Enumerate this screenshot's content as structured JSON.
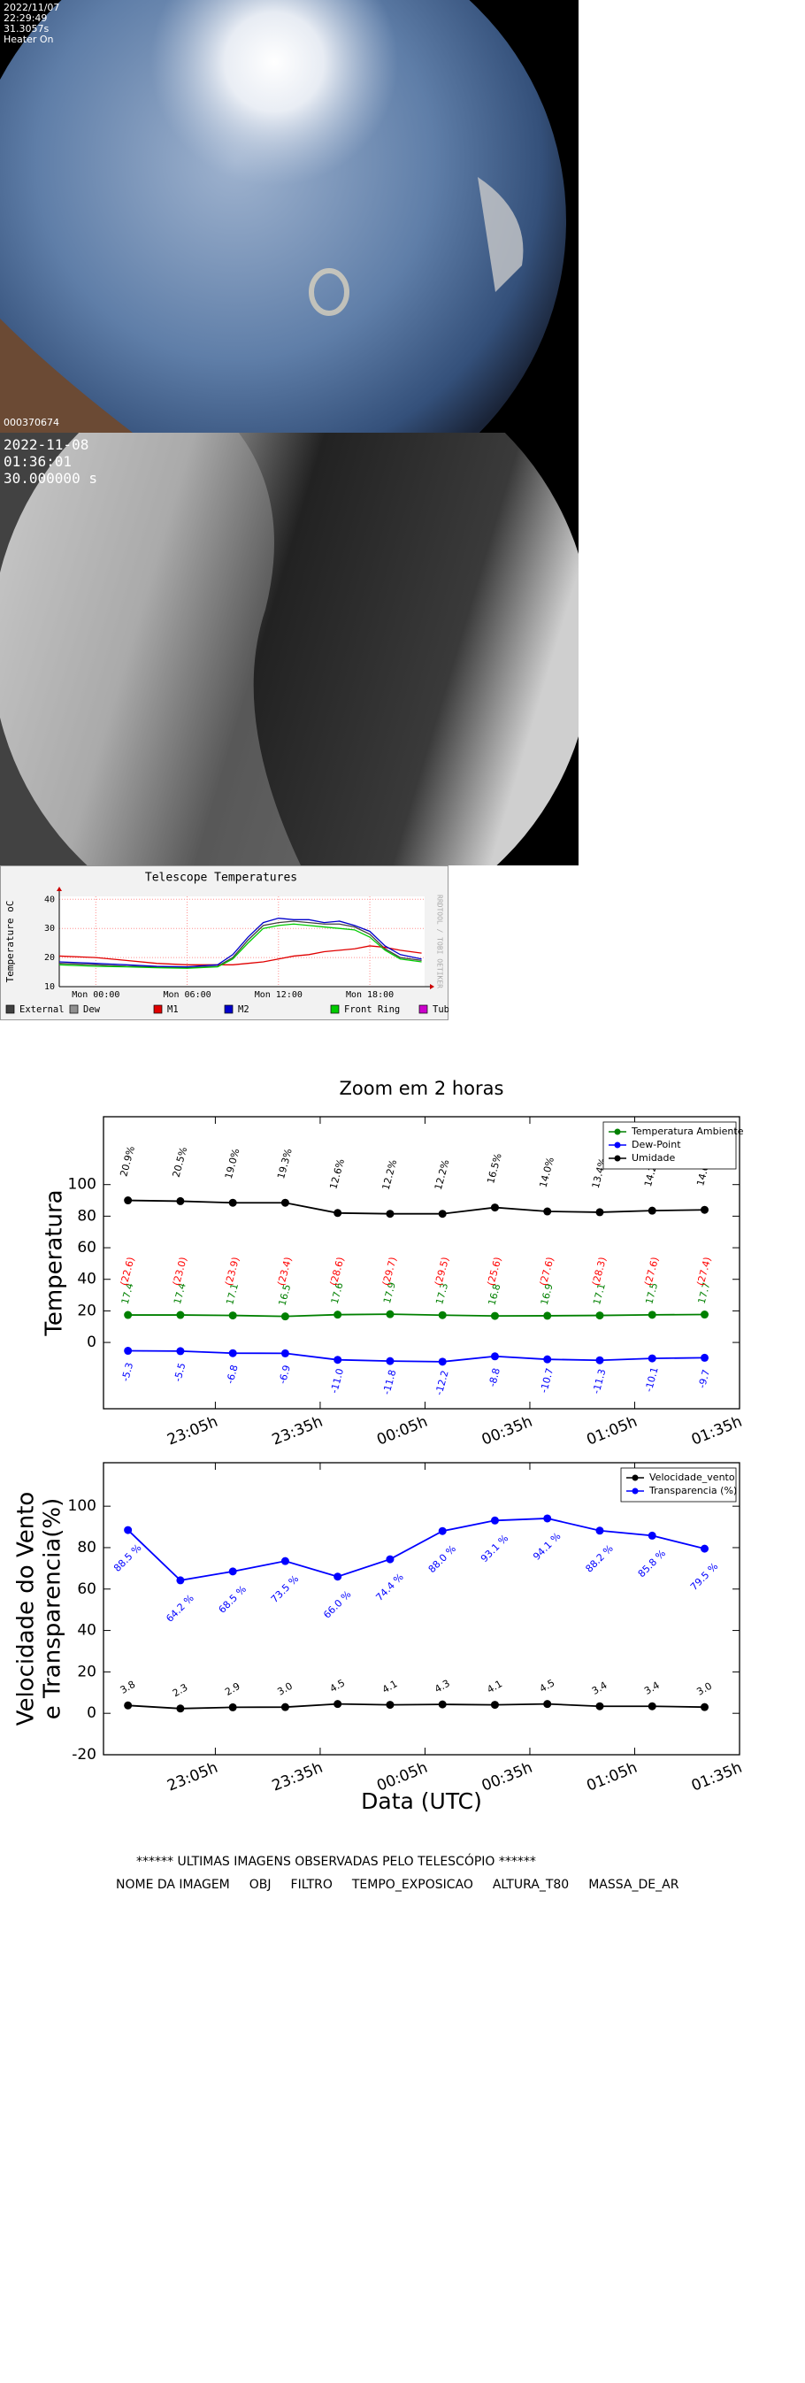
{
  "sky_image_1": {
    "lines": [
      "2022/11/07",
      "22:29:49",
      "31.3057s",
      "Heater On"
    ],
    "frame_id": "000370674"
  },
  "sky_image_2": {
    "lines": [
      "2022-11-08",
      "01:36:01",
      "30.000000 s"
    ]
  },
  "chart_data": [
    {
      "type": "line",
      "title": "Telescope Temperatures",
      "ylabel": "Temperature oC",
      "watermark": "RRDTOOL / TOBI OETIKER",
      "x": [
        -2.4,
        0,
        2,
        4,
        6,
        8,
        9,
        10,
        11,
        12,
        13,
        14,
        15,
        16,
        17,
        18,
        19,
        20,
        21.4
      ],
      "xlim": [
        -2.4,
        21.6
      ],
      "xticks": [
        {
          "value": 0,
          "label": "Mon 00:00"
        },
        {
          "value": 6,
          "label": "Mon 06:00"
        },
        {
          "value": 12,
          "label": "Mon 12:00"
        },
        {
          "value": 18,
          "label": "Mon 18:00"
        }
      ],
      "ylim": [
        10,
        41
      ],
      "yticks": [
        10,
        20,
        30,
        40
      ],
      "grid": true,
      "series": [
        {
          "name": "External",
          "color": "#404040",
          "values": [
            18,
            17.5,
            17,
            16.8,
            16.5,
            17,
            20,
            26,
            31,
            32,
            32.5,
            32,
            31.5,
            31.5,
            30.5,
            28,
            23,
            20,
            19
          ]
        },
        {
          "name": "Dew",
          "color": "#909090",
          "values": [
            null,
            null,
            null,
            null,
            null,
            null,
            null,
            null,
            null,
            null,
            null,
            null,
            null,
            null,
            null,
            null,
            null,
            null,
            null
          ]
        },
        {
          "name": "M1",
          "color": "#e00000",
          "values": [
            20.5,
            20,
            19,
            18,
            17.5,
            17.5,
            17.5,
            18,
            18.5,
            19.5,
            20.5,
            21,
            22,
            22.5,
            23,
            24,
            23.5,
            22.5,
            21.5
          ]
        },
        {
          "name": "M2",
          "color": "#0000cc",
          "values": [
            18.5,
            18,
            17.5,
            17,
            16.8,
            17.5,
            21,
            27,
            32,
            33.5,
            33,
            33,
            32,
            32.5,
            31,
            29,
            24,
            21,
            19.5
          ]
        },
        {
          "name": "Front Ring",
          "color": "#00cc00",
          "values": [
            17.5,
            17,
            16.8,
            16.5,
            16.3,
            16.8,
            19.5,
            25,
            30,
            31,
            31.5,
            31,
            30.5,
            30,
            29.5,
            27,
            22.5,
            19.5,
            18.5
          ]
        },
        {
          "name": "Tube Rod",
          "color": "#cc00cc",
          "values": [
            null,
            null,
            null,
            null,
            null,
            null,
            null,
            null,
            null,
            null,
            null,
            null,
            null,
            null,
            null,
            null,
            null,
            null,
            null
          ]
        }
      ]
    },
    {
      "type": "line",
      "title": "Zoom em 2 horas",
      "ylabel": [
        "Temperatura"
      ],
      "x": [
        -80,
        -65,
        -50,
        -35,
        -20,
        -5,
        10,
        25,
        40,
        55,
        70,
        85
      ],
      "xlim": [
        -87,
        95
      ],
      "xticks": [
        {
          "value": -55,
          "label": "23:05h"
        },
        {
          "value": -25,
          "label": "23:35h"
        },
        {
          "value": 5,
          "label": "00:05h"
        },
        {
          "value": 35,
          "label": "00:35h"
        },
        {
          "value": 65,
          "label": "01:05h"
        },
        {
          "value": 95,
          "label": "01:35h"
        }
      ],
      "ylim": [
        -42,
        143
      ],
      "yticks": [
        0,
        20,
        40,
        60,
        80,
        100
      ],
      "legend": "upper right",
      "series": [
        {
          "name": "Temperatura Ambiente",
          "color": "#008000",
          "values": [
            17.4,
            17.4,
            17.1,
            16.5,
            17.6,
            17.9,
            17.3,
            16.8,
            16.9,
            17.1,
            17.5,
            17.7
          ],
          "value_labels": [
            "17.4",
            "17.4",
            "17.1",
            "16.5",
            "17.6",
            "17.9",
            "17.3",
            "16.8",
            "16.9",
            "17.1",
            "17.5",
            "17.7"
          ]
        },
        {
          "name": "Dew-Point",
          "color": "#0000ff",
          "values": [
            -5.3,
            -5.5,
            -6.8,
            -6.9,
            -11.0,
            -11.8,
            -12.2,
            -8.8,
            -10.7,
            -11.3,
            -10.1,
            -9.7
          ],
          "value_labels": [
            "-5.3",
            "-5.5",
            "-6.8",
            "-6.9",
            "-11.0",
            "-11.8",
            "-12.2",
            "-8.8",
            "-10.7",
            "-11.3",
            "-10.1",
            "-9.7"
          ]
        },
        {
          "name": "Umidade",
          "color": "#000000",
          "values": [
            90,
            89.5,
            88.5,
            88.5,
            82,
            81.5,
            81.5,
            85.5,
            83,
            82.5,
            83.5,
            84
          ]
        }
      ],
      "annotations": [
        {
          "color": "#000000",
          "labels": [
            "20.9%",
            "20.5%",
            "19.0%",
            "19.3%",
            "12.6%",
            "12.2%",
            "12.2%",
            "16.5%",
            "14.0%",
            "13.4%",
            "14.2%",
            "14.6%"
          ]
        },
        {
          "color": "#ff0000",
          "labels": [
            "(22.6)",
            "(23.0)",
            "(23.9)",
            "(23.4)",
            "(28.6)",
            "(29.7)",
            "(29.5)",
            "(25.6)",
            "(27.6)",
            "(28.3)",
            "(27.6)",
            "(27.4)"
          ]
        }
      ]
    },
    {
      "type": "line",
      "ylabel": [
        "Velocidade do Vento",
        "e Transparencia(%)"
      ],
      "xlabel": "Data (UTC)",
      "x": [
        -80,
        -65,
        -50,
        -35,
        -20,
        -5,
        10,
        25,
        40,
        55,
        70,
        85
      ],
      "xlim": [
        -87,
        95
      ],
      "xticks": [
        {
          "value": -55,
          "label": "23:05h"
        },
        {
          "value": -25,
          "label": "23:35h"
        },
        {
          "value": 5,
          "label": "00:05h"
        },
        {
          "value": 35,
          "label": "00:35h"
        },
        {
          "value": 65,
          "label": "01:05h"
        },
        {
          "value": 95,
          "label": "01:35h"
        }
      ],
      "ylim": [
        -20,
        121
      ],
      "yticks": [
        -20,
        0,
        20,
        40,
        60,
        80,
        100
      ],
      "legend": "upper right",
      "series": [
        {
          "name": "Velocidade_vento",
          "color": "#000000",
          "values": [
            3.8,
            2.3,
            2.9,
            3.0,
            4.5,
            4.1,
            4.3,
            4.1,
            4.5,
            3.4,
            3.4,
            3.0
          ],
          "value_labels": [
            "3.8",
            "2.3",
            "2.9",
            "3.0",
            "4.5",
            "4.1",
            "4.3",
            "4.1",
            "4.5",
            "3.4",
            "3.4",
            "3.0"
          ]
        },
        {
          "name": "Transparencia (%)",
          "color": "#0000ff",
          "values": [
            88.5,
            64.2,
            68.5,
            73.5,
            66.0,
            74.4,
            88.0,
            93.1,
            94.1,
            88.2,
            85.8,
            79.5
          ],
          "value_labels": [
            "88.5 %",
            "64.2 %",
            "68.5 %",
            "73.5 %",
            "66.0 %",
            "74.4 %",
            "88.0 %",
            "93.1 %",
            "94.1 %",
            "88.2 %",
            "85.8 %",
            "79.5 %"
          ]
        }
      ]
    }
  ],
  "observations": {
    "caption": "****** ULTIMAS IMAGENS OBSERVADAS PELO TELESCÓPIO ******",
    "headers": [
      "NOME DA IMAGEM",
      "OBJ",
      "FILTRO",
      "TEMPO_EXPOSICAO",
      "ALTURA_T80",
      "MASSA_DE_AR"
    ]
  }
}
